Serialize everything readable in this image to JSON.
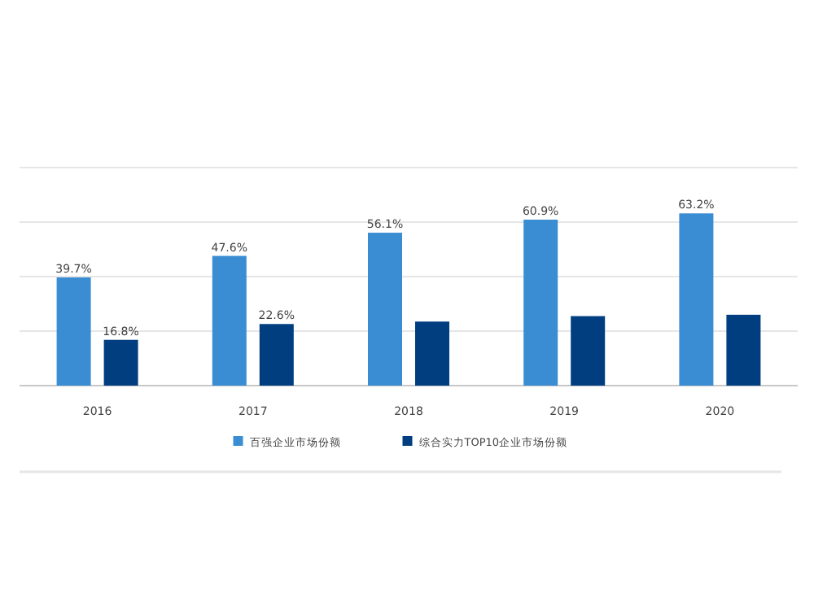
{
  "chart_data": {
    "type": "bar",
    "categories": [
      "2016",
      "2017",
      "2018",
      "2019",
      "2020"
    ],
    "series": [
      {
        "name": "百强企业市场份额",
        "color": "#3a8dd3",
        "values": [
          39.7,
          47.6,
          56.1,
          60.9,
          63.2
        ],
        "value_labels": [
          "39.7%",
          "47.6%",
          "56.1%",
          "60.9%",
          "63.2%"
        ]
      },
      {
        "name": "综合实力TOP10企业市场份额",
        "color": "#003e80",
        "values": [
          16.8,
          22.6,
          23.5,
          25.5,
          26
        ],
        "value_labels": [
          "16.8%",
          "22.6%",
          null,
          null,
          null
        ]
      }
    ],
    "ylim": [
      0,
      80
    ],
    "yticks": [
      {
        "value": 0,
        "label": null
      },
      {
        "value": 20,
        "label": null
      },
      {
        "value": 40,
        "label": null
      },
      {
        "value": 60,
        "label": null
      },
      {
        "value": 80,
        "label": null
      }
    ],
    "grid": "y",
    "tick_labels": "x",
    "legend": "bottom"
  }
}
